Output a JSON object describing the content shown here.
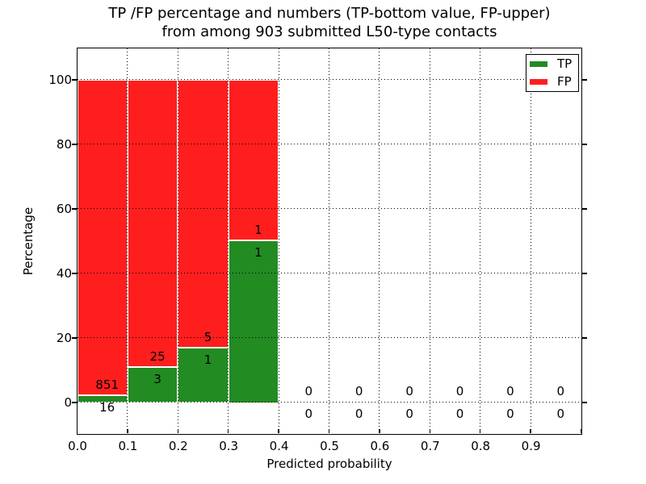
{
  "title": {
    "line1": "TP /FP percentage and numbers (TP-bottom value, FP-upper)",
    "line2": "from among 903 submitted L50-type contacts"
  },
  "axes": {
    "xlabel": "Predicted probability",
    "ylabel": "Percentage",
    "ytick_labels": [
      "0",
      "20",
      "40",
      "60",
      "80",
      "100"
    ],
    "ytick_values": [
      0,
      20,
      40,
      60,
      80,
      100
    ],
    "xtick_labels": [
      "0.0",
      "0.1",
      "0.2",
      "0.3",
      "0.4",
      "0.5",
      "0.6",
      "0.7",
      "0.8",
      "0.9"
    ],
    "xtick_values": [
      0.0,
      0.1,
      0.2,
      0.3,
      0.4,
      0.5,
      0.6,
      0.7,
      0.8,
      0.9
    ]
  },
  "legend": {
    "items": [
      {
        "label": "TP",
        "color": "#228B22"
      },
      {
        "label": "FP",
        "color": "#FF1E1E"
      }
    ]
  },
  "colors": {
    "tp": "#228B22",
    "fp": "#FF1E1E",
    "grid": "#000000",
    "spine": "#000000"
  },
  "chart_data": {
    "type": "bar",
    "stacked": true,
    "title": "TP /FP percentage and numbers (TP-bottom value, FP-upper) from among 903 submitted L50-type contacts",
    "xlabel": "Predicted probability",
    "ylabel": "Percentage",
    "xlim": [
      0.0,
      1.0
    ],
    "ylim": [
      -10,
      110
    ],
    "grid": "dotted",
    "legend_position": "upper right",
    "total_contacts": 903,
    "series": [
      {
        "name": "TP",
        "color": "#228B22"
      },
      {
        "name": "FP",
        "color": "#FF1E1E"
      }
    ],
    "bins": [
      {
        "range": [
          0.0,
          0.1
        ],
        "tp_count": 16,
        "fp_count": 851,
        "tp_pct": 1.85,
        "fp_pct": 98.15,
        "has_bar": true
      },
      {
        "range": [
          0.1,
          0.2
        ],
        "tp_count": 3,
        "fp_count": 25,
        "tp_pct": 10.71,
        "fp_pct": 89.29,
        "has_bar": true
      },
      {
        "range": [
          0.2,
          0.3
        ],
        "tp_count": 1,
        "fp_count": 5,
        "tp_pct": 16.67,
        "fp_pct": 83.33,
        "has_bar": true
      },
      {
        "range": [
          0.3,
          0.4
        ],
        "tp_count": 1,
        "fp_count": 1,
        "tp_pct": 50.0,
        "fp_pct": 50.0,
        "has_bar": true
      },
      {
        "range": [
          0.4,
          0.5
        ],
        "tp_count": 0,
        "fp_count": 0,
        "tp_pct": 0,
        "fp_pct": 0,
        "has_bar": false
      },
      {
        "range": [
          0.5,
          0.6
        ],
        "tp_count": 0,
        "fp_count": 0,
        "tp_pct": 0,
        "fp_pct": 0,
        "has_bar": false
      },
      {
        "range": [
          0.6,
          0.7
        ],
        "tp_count": 0,
        "fp_count": 0,
        "tp_pct": 0,
        "fp_pct": 0,
        "has_bar": false
      },
      {
        "range": [
          0.7,
          0.8
        ],
        "tp_count": 0,
        "fp_count": 0,
        "tp_pct": 0,
        "fp_pct": 0,
        "has_bar": false
      },
      {
        "range": [
          0.8,
          0.9
        ],
        "tp_count": 0,
        "fp_count": 0,
        "tp_pct": 0,
        "fp_pct": 0,
        "has_bar": false
      },
      {
        "range": [
          0.9,
          1.0
        ],
        "tp_count": 0,
        "fp_count": 0,
        "tp_pct": 0,
        "fp_pct": 0,
        "has_bar": false
      }
    ]
  }
}
